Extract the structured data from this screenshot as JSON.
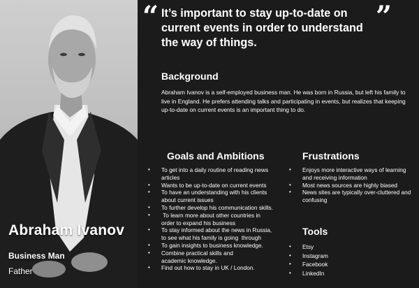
{
  "persona": {
    "name": "Abraham Ivanov",
    "role": "Business Man",
    "relation": "Father"
  },
  "quote": {
    "open_mark": "“",
    "text": "It’s important to stay up-to-date on current events in order to understand the way of things.",
    "close_mark": "”"
  },
  "background": {
    "heading": "Background",
    "text": "Abraham Ivanov is a self-employed business man. He was born in Russia, but left his family to live in England. He prefers attending talks and participating in events, but realizes that keeping up-to-date on current events is an important thing to do."
  },
  "goals": {
    "heading": "Goals and Ambitions",
    "items": [
      "To get into a daily routine of reading news\narticles",
      "Wants to be up-to-date on current events",
      "To have an understanding with his clients\nabout current issues",
      "To further develop his communication skills.",
      " To learn more about other countries in\norder to expand his business",
      "To stay informed about the news in Russia,\nto see what his family is going  through",
      "To gain insights to business knowledge.",
      "Combine practical skills and\nacademic knowledge.",
      "Find out how to stay in UK / London."
    ]
  },
  "frustrations": {
    "heading": "Frustrations",
    "items": [
      "Enjoys more interactive ways of learning\nand receiving information",
      "Most news sources are highly biased",
      "News sites are typically over-cluttered and\nconfusing"
    ]
  },
  "tools": {
    "heading": "Tools",
    "items": [
      "Etsy",
      "Instagram",
      "Facebook",
      "LinkedIn"
    ]
  }
}
